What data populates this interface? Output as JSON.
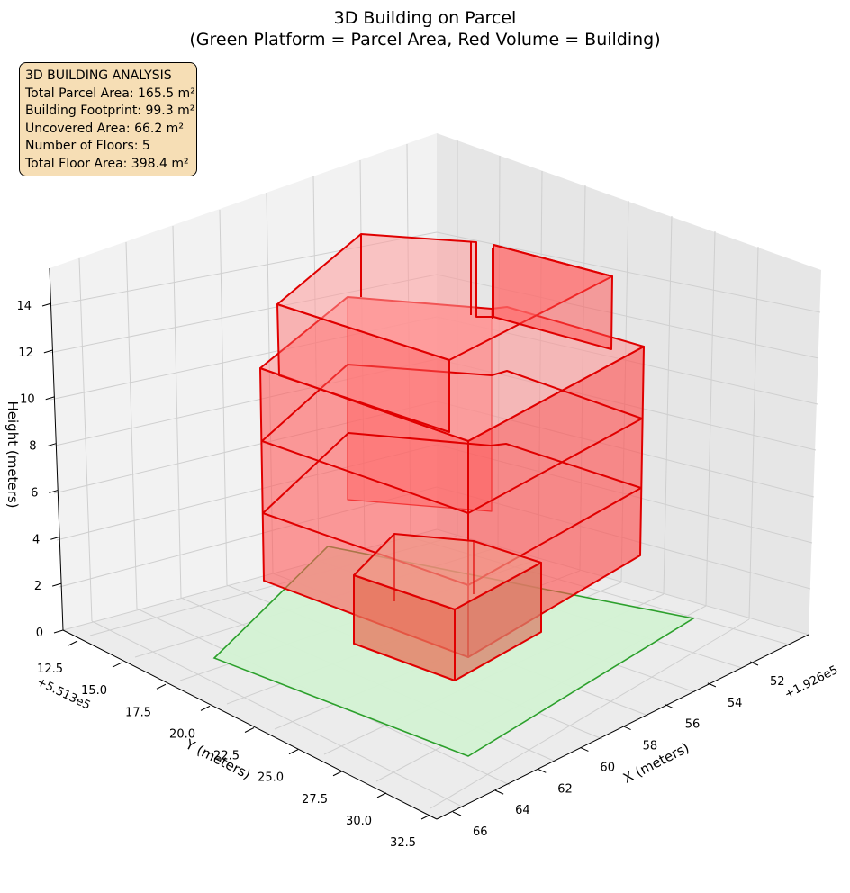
{
  "chart_data": {
    "type": "3d-surface",
    "title": [
      "3D Building on Parcel",
      "(Green Platform = Parcel Area, Red Volume = Building)"
    ],
    "xlabel": "X (meters)",
    "ylabel": "Y (meters)",
    "zlabel": "Height (meters)",
    "x_offset_label": "+1.926e5",
    "y_offset_label": "+5.513e5",
    "x_ticks": [
      "52",
      "54",
      "56",
      "58",
      "60",
      "62",
      "64",
      "66"
    ],
    "y_ticks": [
      "12.5",
      "15.0",
      "17.5",
      "20.0",
      "22.5",
      "25.0",
      "27.5",
      "30.0",
      "32.5"
    ],
    "z_ticks": [
      "0",
      "2",
      "4",
      "6",
      "8",
      "10",
      "12",
      "14"
    ],
    "grid": true,
    "series": [
      {
        "name": "Green Platform = Parcel Area",
        "color": "#2ca02c",
        "fill": "#d4f2d4"
      },
      {
        "name": "Red Volume = Building",
        "color": "#e00000",
        "fill": "#ff5a5a"
      }
    ]
  },
  "info": {
    "heading": "3D BUILDING ANALYSIS",
    "lines": [
      "Total Parcel Area: 165.5 m²",
      "Building Footprint: 99.3 m²",
      "Uncovered Area: 66.2 m²",
      "Number of Floors: 5",
      "Total Floor Area: 398.4 m²"
    ]
  }
}
